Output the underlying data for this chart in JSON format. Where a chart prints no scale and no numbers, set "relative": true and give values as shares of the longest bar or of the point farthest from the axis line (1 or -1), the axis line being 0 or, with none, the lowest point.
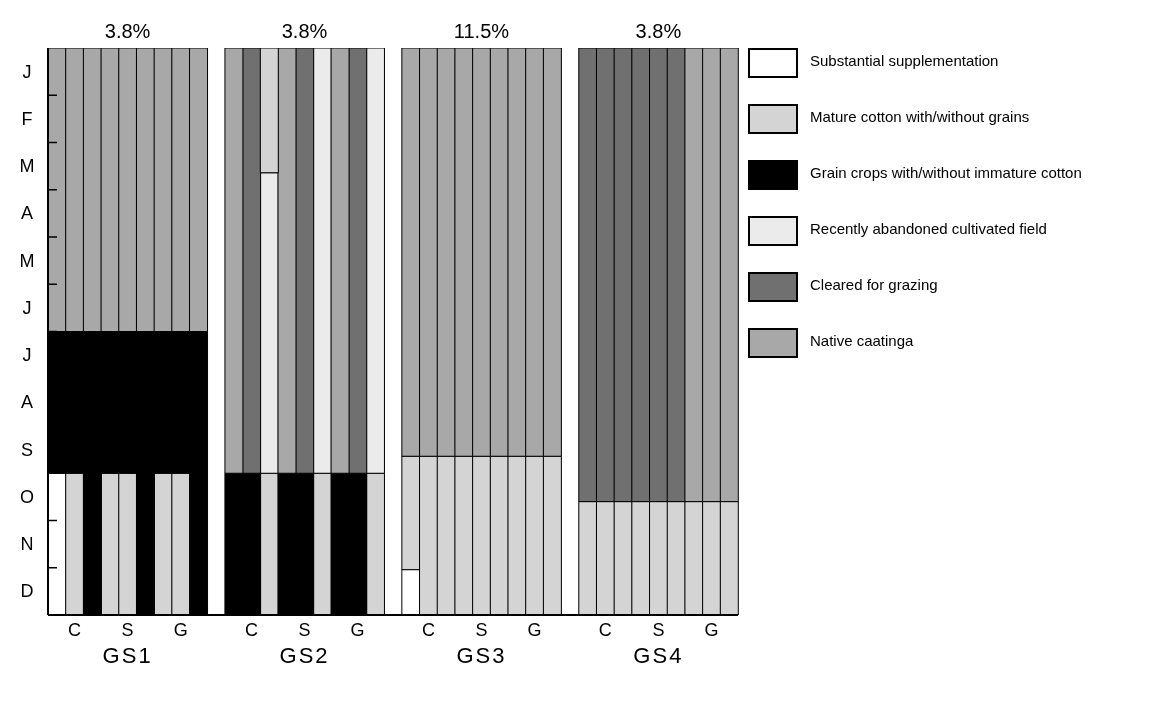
{
  "chart_data": {
    "type": "bar",
    "relative": true,
    "stacked": true,
    "categories": [
      null,
      "C",
      null,
      null,
      "S",
      null,
      null,
      "G",
      null,
      null,
      null,
      "C",
      null,
      null,
      "S",
      null,
      null,
      "G",
      null,
      null,
      null,
      "C",
      null,
      null,
      "S",
      null,
      null,
      "G",
      null,
      null,
      null,
      "C",
      null,
      null,
      "S",
      null,
      null,
      "G",
      null
    ],
    "grid": false,
    "legend": "right",
    "annotations": [
      "3.8%",
      "3.8%",
      "11.5%",
      "3.8%",
      "GS1",
      "GS2",
      "GS3",
      "GS4",
      "J",
      "F",
      "M",
      "A",
      "M",
      "J",
      "J",
      "A",
      "S",
      "O",
      "N",
      "D"
    ],
    "series": [
      {
        "name": "Substantial supplementation",
        "color": "#ffffff",
        "values": [
          0.25,
          null,
          null,
          null,
          null,
          null,
          null,
          null,
          null,
          null,
          null,
          null,
          null,
          null,
          null,
          null,
          null,
          null,
          null,
          null,
          0.08,
          null,
          null,
          null,
          null,
          null,
          null,
          null,
          null,
          null,
          null,
          null,
          null,
          null,
          null,
          null,
          null,
          null,
          null
        ]
      },
      {
        "name": "Mature cotton with/without grains",
        "color": "#d4d4d4",
        "values": [
          null,
          0.25,
          null,
          0.25,
          0.25,
          null,
          0.25,
          0.25,
          null,
          null,
          null,
          null,
          0.25,
          null,
          null,
          0.25,
          null,
          null,
          0.25,
          null,
          0.2,
          0.28,
          0.28,
          0.28,
          0.28,
          0.28,
          0.28,
          0.28,
          0.28,
          null,
          0.2,
          0.2,
          0.2,
          0.2,
          0.2,
          0.2,
          0.2,
          0.2,
          0.2
        ]
      },
      {
        "name": "Grain crops with/without immature cotton",
        "color": "#000000",
        "values": [
          0.25,
          0.25,
          0.5,
          0.25,
          0.25,
          0.5,
          0.25,
          0.25,
          0.5,
          null,
          0.25,
          0.25,
          null,
          0.25,
          0.25,
          null,
          0.25,
          0.25,
          null,
          null,
          null,
          null,
          null,
          null,
          null,
          null,
          null,
          null,
          null,
          null,
          null,
          null,
          null,
          null,
          null,
          null,
          null,
          null,
          null
        ]
      },
      {
        "name": "Recently abandoned cultivated field",
        "color": "#ebebeb",
        "values": [
          null,
          null,
          null,
          null,
          null,
          null,
          null,
          null,
          null,
          null,
          null,
          null,
          0.53,
          null,
          null,
          0.75,
          null,
          null,
          0.75,
          null,
          null,
          null,
          null,
          null,
          null,
          null,
          null,
          null,
          null,
          null,
          null,
          null,
          null,
          null,
          null,
          null,
          null,
          null,
          null
        ]
      },
      {
        "name": "Cleared for grazing",
        "color": "#707070",
        "values": [
          null,
          null,
          null,
          null,
          null,
          null,
          null,
          null,
          null,
          null,
          null,
          0.75,
          null,
          null,
          0.75,
          null,
          null,
          0.75,
          null,
          null,
          null,
          null,
          null,
          null,
          null,
          null,
          null,
          null,
          null,
          null,
          0.8,
          0.8,
          0.8,
          0.8,
          0.8,
          0.8,
          null,
          null,
          null
        ]
      },
      {
        "name": "Native caatinga",
        "color": "#a8a8a8",
        "values": [
          0.5,
          0.5,
          0.5,
          0.5,
          0.5,
          0.5,
          0.5,
          0.5,
          0.5,
          null,
          0.75,
          null,
          null,
          0.75,
          null,
          null,
          0.75,
          null,
          null,
          null,
          0.72,
          0.72,
          0.72,
          0.72,
          0.72,
          0.72,
          0.72,
          0.72,
          0.72,
          null,
          null,
          null,
          null,
          null,
          null,
          null,
          0.8,
          0.8,
          0.8
        ]
      },
      {
        "color": "#d4d4d4",
        "values": [
          null,
          null,
          null,
          null,
          null,
          null,
          null,
          null,
          null,
          null,
          null,
          null,
          0.22,
          null,
          null,
          null,
          null,
          null,
          null,
          null,
          null,
          null,
          null,
          null,
          null,
          null,
          null,
          null,
          null,
          null,
          null,
          null,
          null,
          null,
          null,
          null,
          null,
          null,
          null
        ]
      }
    ]
  }
}
